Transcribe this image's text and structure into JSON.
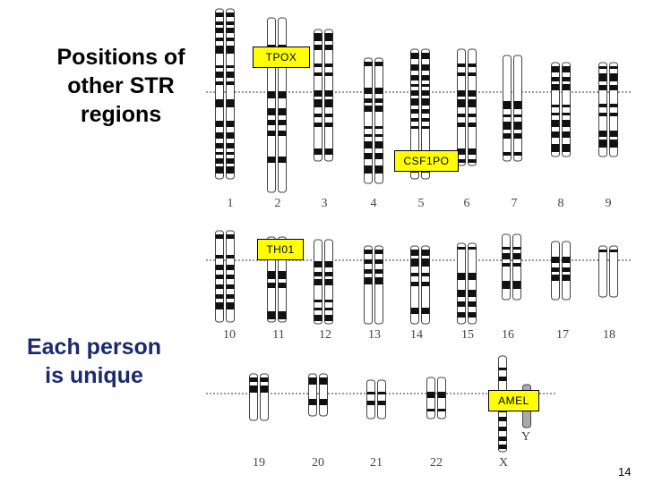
{
  "title": "Positions of other STR regions",
  "subtitle": "Each person is unique",
  "markers": [
    "TPOX",
    "CSF1PO",
    "TH01",
    "AMEL"
  ],
  "chromosomes": [
    "1",
    "2",
    "3",
    "4",
    "5",
    "6",
    "7",
    "8",
    "9",
    "10",
    "11",
    "12",
    "13",
    "14",
    "15",
    "16",
    "17",
    "18",
    "19",
    "20",
    "21",
    "22",
    "X",
    "Y"
  ],
  "page_number": "14"
}
